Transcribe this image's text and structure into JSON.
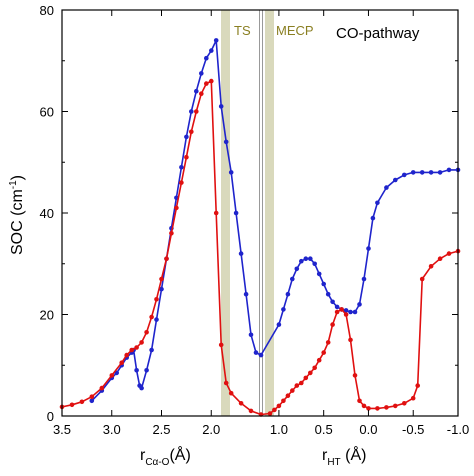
{
  "chart_data": {
    "type": "line",
    "ylabel": "SOC (cm",
    "ylabel_sup": "-1",
    "ylabel_close": ")",
    "xlabel_left": {
      "main": "r",
      "sub": "Cα-O",
      "unit": "(Å)"
    },
    "xlabel_right": {
      "main": "r",
      "sub": "HT",
      "unit": " (Å)"
    },
    "ylim": [
      0,
      80
    ],
    "yticks": [
      0,
      20,
      40,
      60,
      80
    ],
    "xticks_left": [
      "3.5",
      "3.0",
      "2.5",
      "2.0"
    ],
    "xticks_right": [
      "1.0",
      "0.5",
      "0.0",
      "-0.5",
      "-1.0"
    ],
    "annotations": {
      "ts": "TS",
      "mecp": "MECP",
      "pathway": "CO-pathway"
    },
    "colors": {
      "blue": "#1f24cc",
      "red": "#e01010",
      "band": "#c9c9a0",
      "divider": "#999999",
      "label": "#8a7f22"
    },
    "series": [
      {
        "color": "blue",
        "x_left_region": [
          3.2,
          3.1,
          3.0,
          2.95,
          2.9,
          2.85,
          2.8,
          2.78,
          2.75,
          2.72,
          2.7,
          2.65,
          2.6,
          2.55,
          2.5,
          2.45,
          2.4,
          2.35,
          2.3,
          2.25,
          2.2,
          2.15,
          2.1,
          2.05,
          2.0,
          1.95,
          1.9,
          1.85,
          1.8,
          1.75,
          1.7,
          1.65,
          1.6,
          1.55,
          1.5
        ],
        "y_left_region": [
          3,
          5,
          7.5,
          8.5,
          10,
          11.5,
          12.5,
          13,
          9,
          6,
          5.5,
          9,
          13,
          19,
          25,
          31,
          37,
          43,
          49,
          55,
          60,
          64,
          67.5,
          70.5,
          72,
          74,
          61,
          54,
          48,
          40,
          32,
          24,
          16,
          12.5,
          12
        ],
        "x_right_region": [
          1.0,
          0.95,
          0.9,
          0.85,
          0.8,
          0.75,
          0.7,
          0.65,
          0.6,
          0.55,
          0.5,
          0.45,
          0.4,
          0.35,
          0.3,
          0.25,
          0.2,
          0.15,
          0.1,
          0.05,
          0.0,
          -0.05,
          -0.1,
          -0.2,
          -0.3,
          -0.4,
          -0.5,
          -0.6,
          -0.7,
          -0.8,
          -0.9,
          -1.0
        ],
        "y_right_region": [
          18,
          21,
          24,
          27,
          29,
          30.5,
          31,
          31,
          30,
          28,
          26,
          24,
          22.5,
          21.5,
          21,
          20.8,
          20.5,
          20.5,
          22,
          27,
          33,
          39,
          42,
          45,
          46.5,
          47.5,
          48,
          48,
          48,
          48,
          48.5,
          48.5
        ]
      },
      {
        "color": "red",
        "x_left_region": [
          3.5,
          3.4,
          3.3,
          3.2,
          3.1,
          3.0,
          2.9,
          2.85,
          2.8,
          2.75,
          2.7,
          2.65,
          2.6,
          2.55,
          2.5,
          2.45,
          2.4,
          2.35,
          2.3,
          2.25,
          2.2,
          2.15,
          2.1,
          2.05,
          2.0,
          1.95,
          1.9,
          1.85,
          1.8,
          1.7,
          1.6,
          1.5
        ],
        "y_left_region": [
          1.8,
          2.2,
          2.8,
          3.8,
          5.5,
          8,
          10.5,
          12,
          13,
          13.5,
          14.5,
          16.5,
          19.5,
          23,
          27,
          31,
          36,
          41,
          46,
          51,
          56,
          60,
          63.5,
          65.5,
          66,
          40,
          14,
          6.5,
          4.5,
          2.5,
          1,
          0.3
        ],
        "x_right_region": [
          1.1,
          1.05,
          1.0,
          0.95,
          0.9,
          0.85,
          0.8,
          0.75,
          0.7,
          0.65,
          0.6,
          0.55,
          0.5,
          0.45,
          0.4,
          0.35,
          0.3,
          0.25,
          0.2,
          0.15,
          0.1,
          0.05,
          0.0,
          -0.1,
          -0.2,
          -0.3,
          -0.4,
          -0.5,
          -0.55,
          -0.6,
          -0.7,
          -0.8,
          -0.9,
          -1.0
        ],
        "y_right_region": [
          0.5,
          1.2,
          2,
          3,
          4,
          5,
          6,
          6.5,
          7.5,
          8.5,
          9.5,
          11,
          12.5,
          14.5,
          18,
          20.5,
          21,
          20,
          15,
          8,
          3,
          2,
          1.5,
          1.5,
          1.7,
          2,
          2.5,
          3.5,
          6,
          27,
          29.5,
          31,
          32,
          32.5
        ]
      }
    ]
  }
}
